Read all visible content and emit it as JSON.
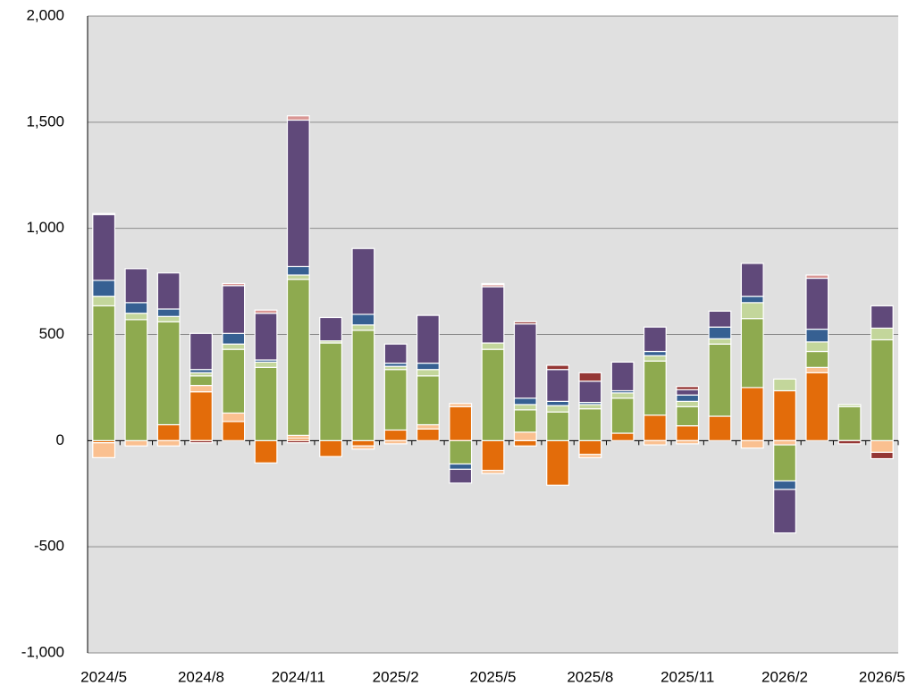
{
  "chart_data": {
    "type": "stacked_bar",
    "categories": [
      "2024/5",
      null,
      null,
      "2024/8",
      null,
      null,
      "2024/11",
      null,
      null,
      "2025/2",
      null,
      null,
      "2025/5",
      null,
      null,
      "2025/8",
      null,
      null,
      "2025/11",
      null,
      null,
      "2026/2",
      null,
      null,
      "2026/5"
    ],
    "series": [
      {
        "color": "#e36c0a",
        "values": [
          -10,
          0,
          75,
          230,
          90,
          -105,
          10,
          -75,
          -25,
          50,
          55,
          160,
          -140,
          -25,
          -210,
          -65,
          35,
          120,
          70,
          115,
          250,
          235,
          320,
          0,
          0
        ]
      },
      {
        "color": "#fac090",
        "values": [
          -70,
          -25,
          -25,
          30,
          40,
          0,
          15,
          0,
          -15,
          -15,
          20,
          15,
          -15,
          40,
          0,
          -15,
          0,
          -20,
          -15,
          0,
          -35,
          -20,
          25,
          0,
          -55
        ]
      },
      {
        "color": "#8eaa4f",
        "values": [
          635,
          570,
          485,
          45,
          300,
          345,
          735,
          460,
          520,
          285,
          230,
          -110,
          430,
          105,
          135,
          150,
          165,
          255,
          90,
          340,
          325,
          -170,
          75,
          160,
          475
        ]
      },
      {
        "color": "#c3d69b",
        "values": [
          45,
          30,
          25,
          15,
          25,
          25,
          20,
          10,
          25,
          15,
          30,
          0,
          30,
          25,
          30,
          20,
          25,
          25,
          25,
          25,
          75,
          55,
          45,
          10,
          55
        ]
      },
      {
        "color": "#366092",
        "values": [
          75,
          50,
          35,
          15,
          50,
          10,
          40,
          0,
          50,
          15,
          30,
          -25,
          0,
          30,
          20,
          10,
          10,
          20,
          30,
          55,
          30,
          -40,
          60,
          0,
          0
        ]
      },
      {
        "color": "#60497a",
        "values": [
          310,
          160,
          170,
          170,
          225,
          220,
          690,
          110,
          310,
          90,
          225,
          -65,
          265,
          350,
          150,
          100,
          135,
          115,
          25,
          75,
          155,
          -205,
          240,
          0,
          105
        ]
      },
      {
        "color": "#d99694",
        "values": [
          5,
          0,
          0,
          0,
          10,
          15,
          20,
          0,
          0,
          0,
          0,
          0,
          10,
          0,
          0,
          0,
          0,
          0,
          0,
          0,
          0,
          0,
          15,
          0,
          0
        ]
      },
      {
        "color": "#953735",
        "values": [
          0,
          0,
          0,
          -10,
          0,
          0,
          -10,
          0,
          0,
          0,
          0,
          0,
          5,
          10,
          20,
          40,
          0,
          0,
          15,
          0,
          0,
          0,
          0,
          -15,
          -30
        ]
      }
    ],
    "ylim": [
      -1000,
      2000
    ],
    "yticks": [
      {
        "value": -1000,
        "label": "-1,000"
      },
      -500,
      0,
      500,
      {
        "value": 1000,
        "label": "1,000"
      },
      {
        "value": 1500,
        "label": "1,500"
      },
      {
        "value": 2000,
        "label": "2,000"
      }
    ],
    "negative_tick_color": "#ff0000",
    "grid": true
  }
}
